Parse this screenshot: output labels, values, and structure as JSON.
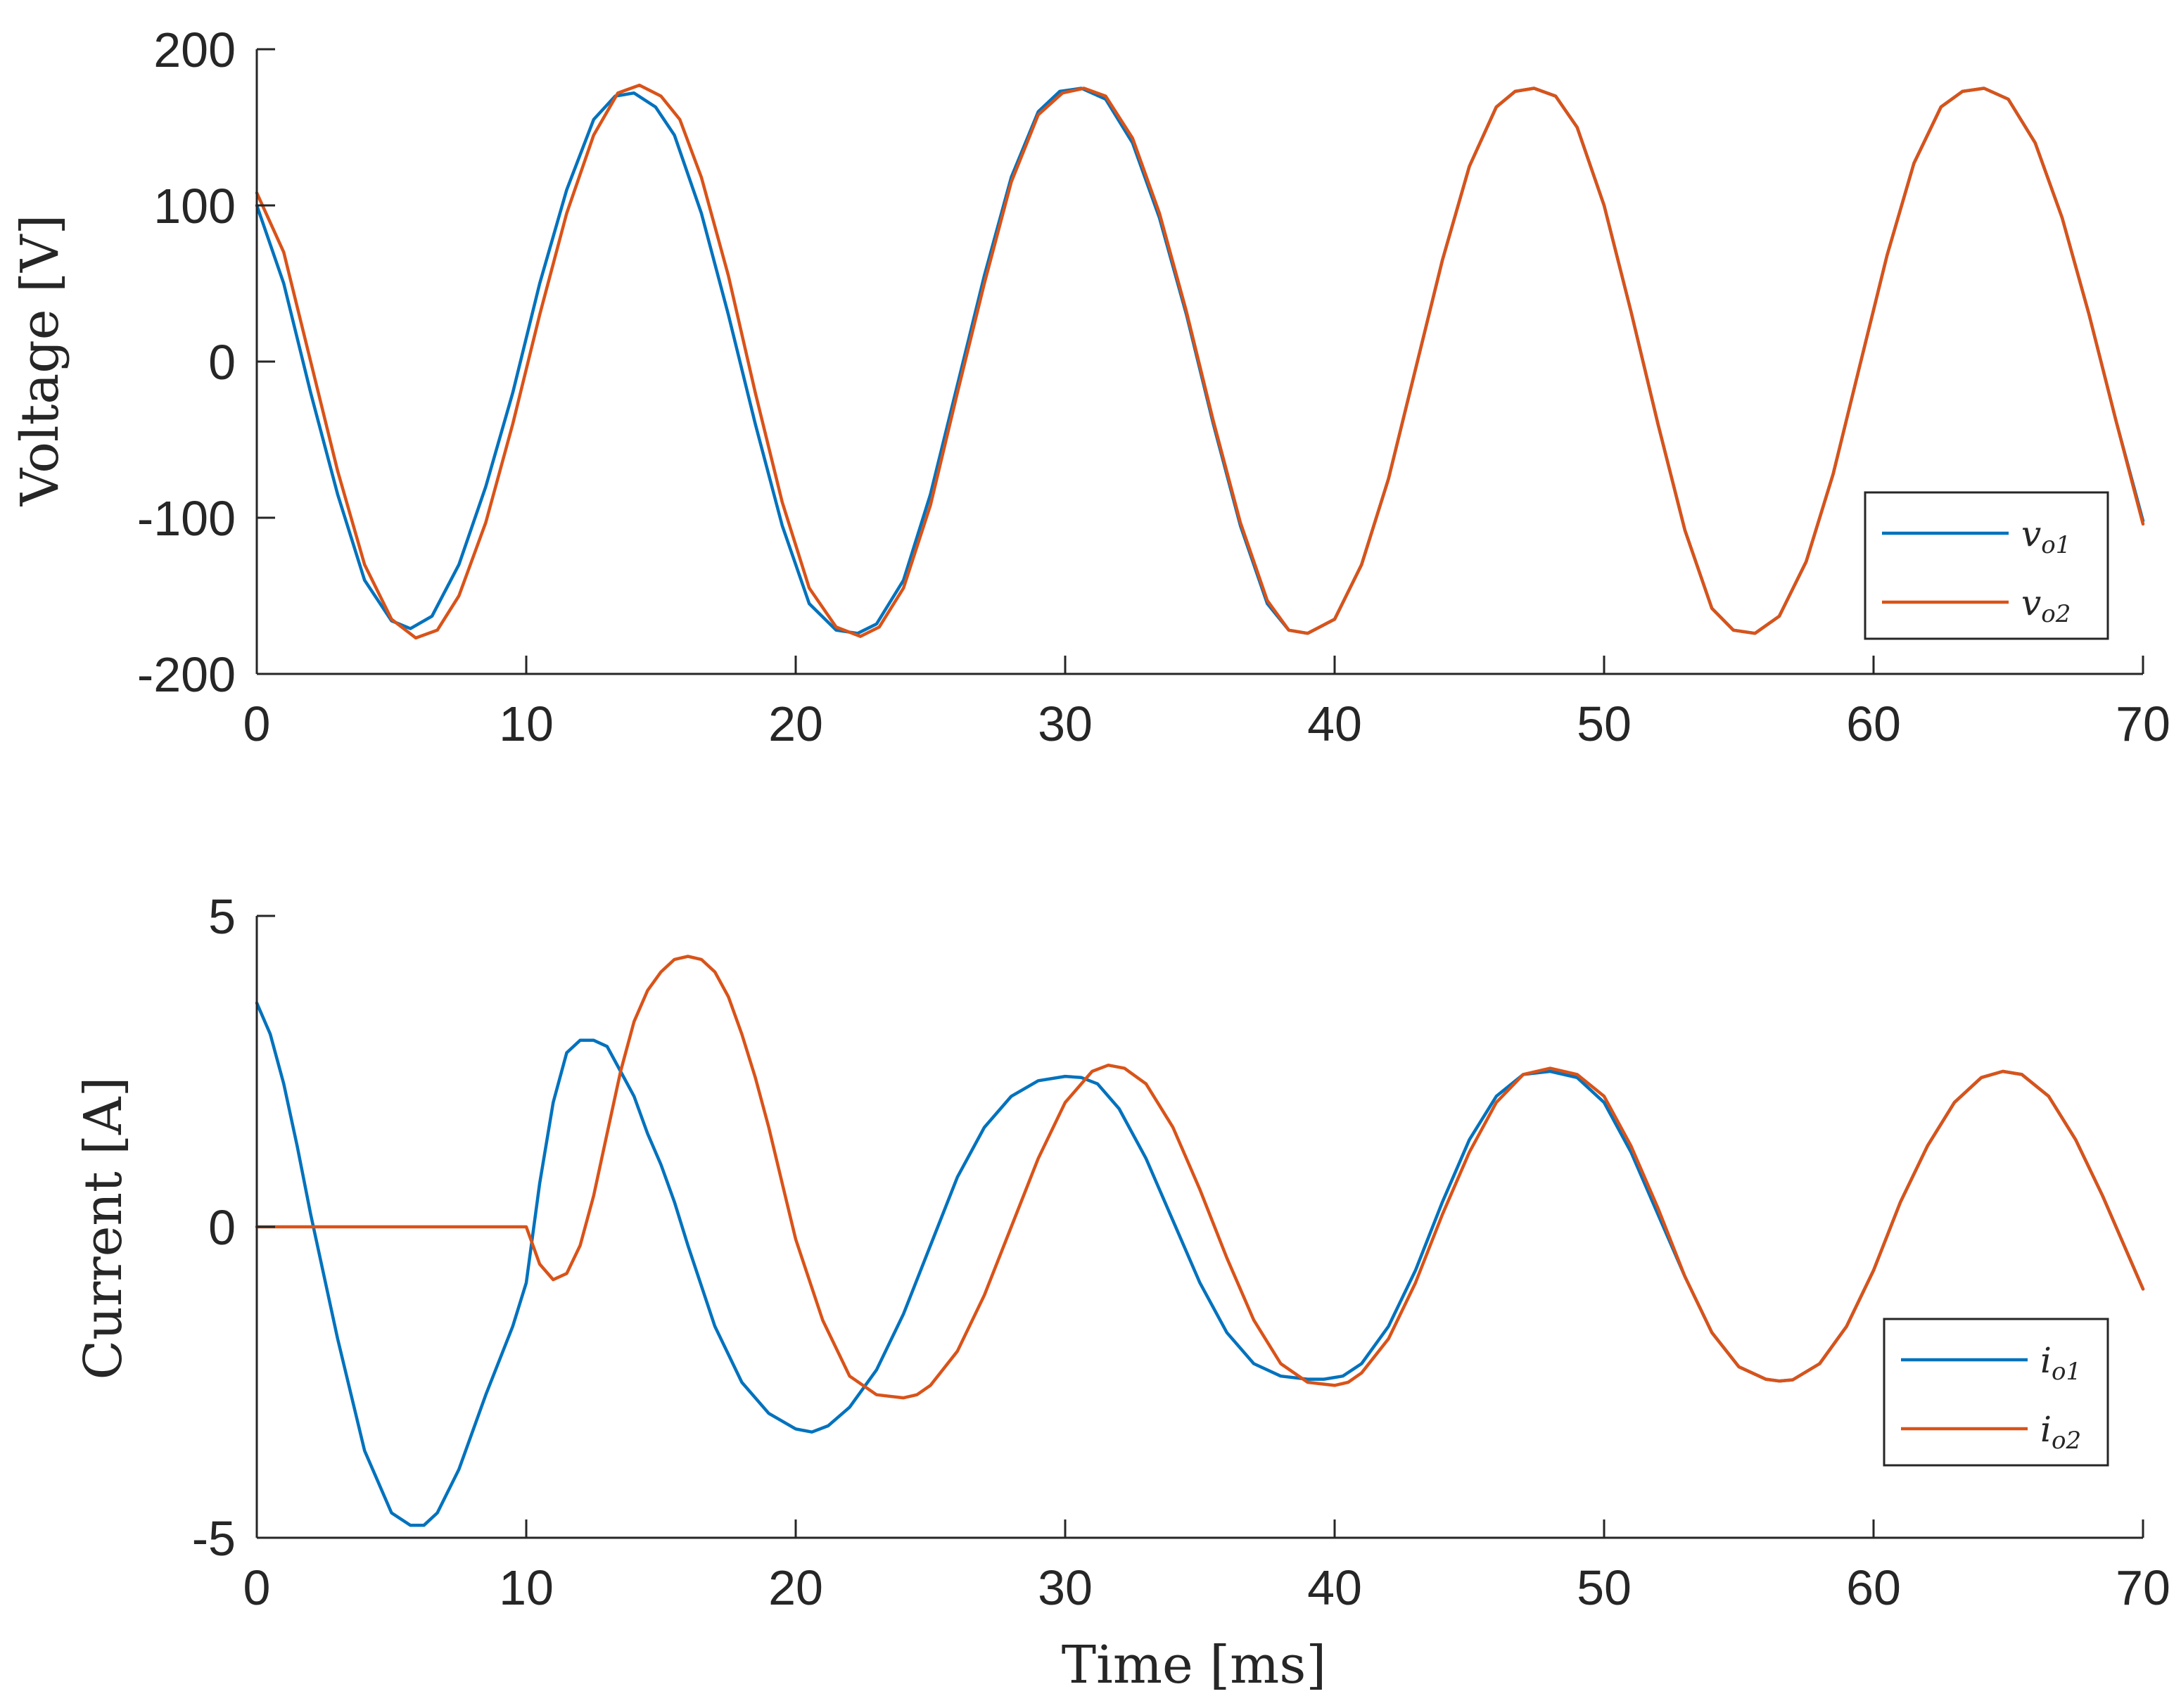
{
  "figure": {
    "xlabel": "Time [ms]"
  },
  "colors": {
    "series1": "#0072BD",
    "series2": "#D95319",
    "axis": "#262626"
  },
  "chart_data": [
    {
      "type": "line",
      "ylabel": "Voltage [V]",
      "xlim": [
        0,
        70
      ],
      "ylim": [
        -200,
        200
      ],
      "xticks": [
        0,
        10,
        20,
        30,
        40,
        50,
        60,
        70
      ],
      "yticks": [
        -200,
        -100,
        0,
        100,
        200
      ],
      "xtick_labels": [
        "0",
        "10",
        "20",
        "30",
        "40",
        "50",
        "60",
        "70"
      ],
      "ytick_labels": [
        "-200",
        "-100",
        "0",
        "100",
        "200"
      ],
      "legend_position": "bottom-right",
      "series": [
        {
          "name": "v_o1",
          "label_main": "v",
          "label_sub": "o1",
          "color": "#0072BD",
          "x": [
            0,
            1,
            2,
            3,
            4,
            5,
            5.7,
            6.5,
            7.5,
            8.5,
            9.5,
            10.5,
            11.5,
            12.5,
            13.3,
            14.0,
            14.8,
            15.5,
            16.5,
            17.5,
            18.5,
            19.5,
            20.5,
            21.5,
            22.3,
            23.0,
            24.0,
            25.0,
            26.0,
            27.0,
            28.0,
            29.0,
            29.8,
            30.6,
            31.5,
            32.5,
            33.5,
            34.5,
            35.5,
            36.5,
            37.5,
            38.3,
            39.0,
            40.0,
            41.0,
            42.0,
            43.0,
            44.0,
            45.0,
            46.0,
            46.7,
            47.4,
            48.2,
            49.0,
            50.0,
            51.0,
            52.0,
            53.0,
            54.0,
            54.8,
            55.6,
            56.5,
            57.5,
            58.5,
            59.5,
            60.5,
            61.5,
            62.5,
            63.3,
            64.1,
            65.0,
            66.0,
            67.0,
            68.0,
            69.0,
            70.0
          ],
          "y": [
            100,
            50,
            -20,
            -85,
            -140,
            -166,
            -171,
            -163,
            -130,
            -80,
            -20,
            50,
            110,
            155,
            170,
            172,
            163,
            145,
            95,
            30,
            -40,
            -105,
            -155,
            -172,
            -174,
            -168,
            -140,
            -85,
            -15,
            55,
            118,
            160,
            173,
            175,
            168,
            140,
            92,
            30,
            -40,
            -105,
            -155,
            -172,
            -174,
            -165,
            -130,
            -75,
            -5,
            65,
            125,
            163,
            173,
            175,
            170,
            150,
            100,
            32,
            -40,
            -108,
            -158,
            -172,
            -174,
            -163,
            -128,
            -72,
            -2,
            68,
            127,
            163,
            173,
            175,
            168,
            140,
            92,
            30,
            -38,
            -102
          ]
        },
        {
          "name": "v_o2",
          "label_main": "v",
          "label_sub": "o2",
          "color": "#D95319",
          "x": [
            0,
            1,
            2,
            3,
            4,
            5,
            5.9,
            6.7,
            7.5,
            8.5,
            9.5,
            10.5,
            11.5,
            12.5,
            13.4,
            14.2,
            15.0,
            15.7,
            16.5,
            17.5,
            18.5,
            19.5,
            20.5,
            21.5,
            22.4,
            23.1,
            24.0,
            25.0,
            26.0,
            27.0,
            28.0,
            29.0,
            29.9,
            30.7,
            31.5,
            32.5,
            33.5,
            34.5,
            35.5,
            36.5,
            37.5,
            38.3,
            39.0,
            40.0,
            41.0,
            42.0,
            43.0,
            44.0,
            45.0,
            46.0,
            46.7,
            47.4,
            48.2,
            49.0,
            50.0,
            51.0,
            52.0,
            53.0,
            54.0,
            54.8,
            55.6,
            56.5,
            57.5,
            58.5,
            59.5,
            60.5,
            61.5,
            62.5,
            63.3,
            64.1,
            65.0,
            66.0,
            67.0,
            68.0,
            69.0,
            70.0
          ],
          "y": [
            108,
            70,
            0,
            -70,
            -130,
            -165,
            -177,
            -172,
            -150,
            -103,
            -40,
            30,
            95,
            145,
            172,
            177,
            170,
            155,
            118,
            55,
            -20,
            -90,
            -145,
            -170,
            -176,
            -170,
            -145,
            -92,
            -20,
            50,
            115,
            158,
            172,
            175,
            170,
            143,
            95,
            32,
            -38,
            -103,
            -153,
            -172,
            -174,
            -165,
            -130,
            -75,
            -5,
            65,
            125,
            163,
            173,
            175,
            170,
            150,
            100,
            32,
            -40,
            -108,
            -158,
            -172,
            -174,
            -163,
            -128,
            -72,
            -2,
            68,
            127,
            163,
            173,
            175,
            168,
            140,
            92,
            30,
            -38,
            -104
          ]
        }
      ]
    },
    {
      "type": "line",
      "ylabel": "Current [A]",
      "xlabel": "Time [ms]",
      "xlim": [
        0,
        70
      ],
      "ylim": [
        -5,
        5
      ],
      "xticks": [
        0,
        10,
        20,
        30,
        40,
        50,
        60,
        70
      ],
      "yticks": [
        -5,
        0,
        5
      ],
      "xtick_labels": [
        "0",
        "10",
        "20",
        "30",
        "40",
        "50",
        "60",
        "70"
      ],
      "ytick_labels": [
        "-5",
        "0",
        "5"
      ],
      "legend_position": "bottom-right",
      "series": [
        {
          "name": "i_o1",
          "label_main": "i",
          "label_sub": "o1",
          "color": "#0072BD",
          "x": [
            0,
            0.5,
            1,
            1.5,
            2,
            3,
            4,
            5,
            5.7,
            6.2,
            6.7,
            7.5,
            8.5,
            9.5,
            10.0,
            10.5,
            11.0,
            11.5,
            12.0,
            12.5,
            13.0,
            13.5,
            14.0,
            14.5,
            15.0,
            15.5,
            16.0,
            17.0,
            18.0,
            19.0,
            20.0,
            20.6,
            21.2,
            22.0,
            23.0,
            24.0,
            25.0,
            26.0,
            27.0,
            28.0,
            29.0,
            30.0,
            30.6,
            31.2,
            32.0,
            33.0,
            34.0,
            35.0,
            36.0,
            37.0,
            38.0,
            39.0,
            39.6,
            40.3,
            41.0,
            42.0,
            43.0,
            44.0,
            45.0,
            46.0,
            47.0,
            48.0,
            49.0,
            50.0,
            51.0,
            52.0,
            53.0,
            54.0,
            55.0,
            56.0,
            56.5,
            57.0,
            58.0,
            59.0,
            60.0,
            61.0,
            62.0,
            63.0,
            64.0,
            64.8,
            65.5,
            66.5,
            67.5,
            68.5,
            69.5,
            70.0
          ],
          "y": [
            3.6,
            3.1,
            2.3,
            1.3,
            0.2,
            -1.8,
            -3.6,
            -4.6,
            -4.8,
            -4.8,
            -4.6,
            -3.9,
            -2.7,
            -1.6,
            -0.9,
            0.7,
            2.0,
            2.8,
            3.0,
            3.0,
            2.9,
            2.5,
            2.1,
            1.5,
            1.0,
            0.4,
            -0.3,
            -1.6,
            -2.5,
            -3.0,
            -3.25,
            -3.3,
            -3.2,
            -2.9,
            -2.3,
            -1.4,
            -0.3,
            0.8,
            1.6,
            2.1,
            2.35,
            2.42,
            2.4,
            2.3,
            1.9,
            1.1,
            0.1,
            -0.9,
            -1.7,
            -2.2,
            -2.4,
            -2.45,
            -2.45,
            -2.4,
            -2.2,
            -1.6,
            -0.7,
            0.4,
            1.4,
            2.1,
            2.45,
            2.5,
            2.4,
            2.0,
            1.2,
            0.2,
            -0.8,
            -1.7,
            -2.25,
            -2.45,
            -2.48,
            -2.46,
            -2.2,
            -1.6,
            -0.7,
            0.4,
            1.3,
            2.0,
            2.4,
            2.5,
            2.45,
            2.1,
            1.4,
            0.5,
            -0.5,
            -1.0
          ]
        },
        {
          "name": "i_o2",
          "label_main": "i",
          "label_sub": "o2",
          "color": "#D95319",
          "x": [
            0,
            2,
            4,
            6,
            8,
            9.5,
            10.0,
            10.5,
            11.0,
            11.5,
            12.0,
            12.5,
            13.0,
            13.5,
            14.0,
            14.5,
            15.0,
            15.5,
            16.0,
            16.5,
            17.0,
            17.5,
            18.0,
            18.5,
            19.0,
            19.5,
            20.0,
            21.0,
            22.0,
            23.0,
            24.0,
            24.5,
            25.0,
            26.0,
            27.0,
            28.0,
            29.0,
            30.0,
            31.0,
            31.6,
            32.2,
            33.0,
            34.0,
            35.0,
            36.0,
            37.0,
            38.0,
            39.0,
            40.0,
            40.5,
            41.0,
            42.0,
            43.0,
            44.0,
            45.0,
            46.0,
            47.0,
            48.0,
            49.0,
            50.0,
            51.0,
            52.0,
            53.0,
            54.0,
            55.0,
            56.0,
            56.5,
            57.0,
            58.0,
            59.0,
            60.0,
            61.0,
            62.0,
            63.0,
            64.0,
            64.8,
            65.5,
            66.5,
            67.5,
            68.5,
            69.5,
            70.0
          ],
          "y": [
            0,
            0,
            0,
            0,
            0,
            0,
            0,
            -0.6,
            -0.85,
            -0.75,
            -0.3,
            0.5,
            1.5,
            2.5,
            3.3,
            3.8,
            4.1,
            4.3,
            4.35,
            4.3,
            4.1,
            3.7,
            3.1,
            2.4,
            1.6,
            0.7,
            -0.2,
            -1.5,
            -2.4,
            -2.7,
            -2.75,
            -2.7,
            -2.55,
            -2.0,
            -1.1,
            0.0,
            1.1,
            2.0,
            2.5,
            2.6,
            2.55,
            2.3,
            1.6,
            0.6,
            -0.5,
            -1.5,
            -2.2,
            -2.5,
            -2.55,
            -2.5,
            -2.35,
            -1.8,
            -0.9,
            0.2,
            1.2,
            2.0,
            2.45,
            2.55,
            2.45,
            2.1,
            1.3,
            0.3,
            -0.8,
            -1.7,
            -2.25,
            -2.45,
            -2.48,
            -2.46,
            -2.2,
            -1.6,
            -0.7,
            0.4,
            1.3,
            2.0,
            2.4,
            2.5,
            2.45,
            2.1,
            1.4,
            0.5,
            -0.5,
            -1.0
          ]
        }
      ]
    }
  ]
}
